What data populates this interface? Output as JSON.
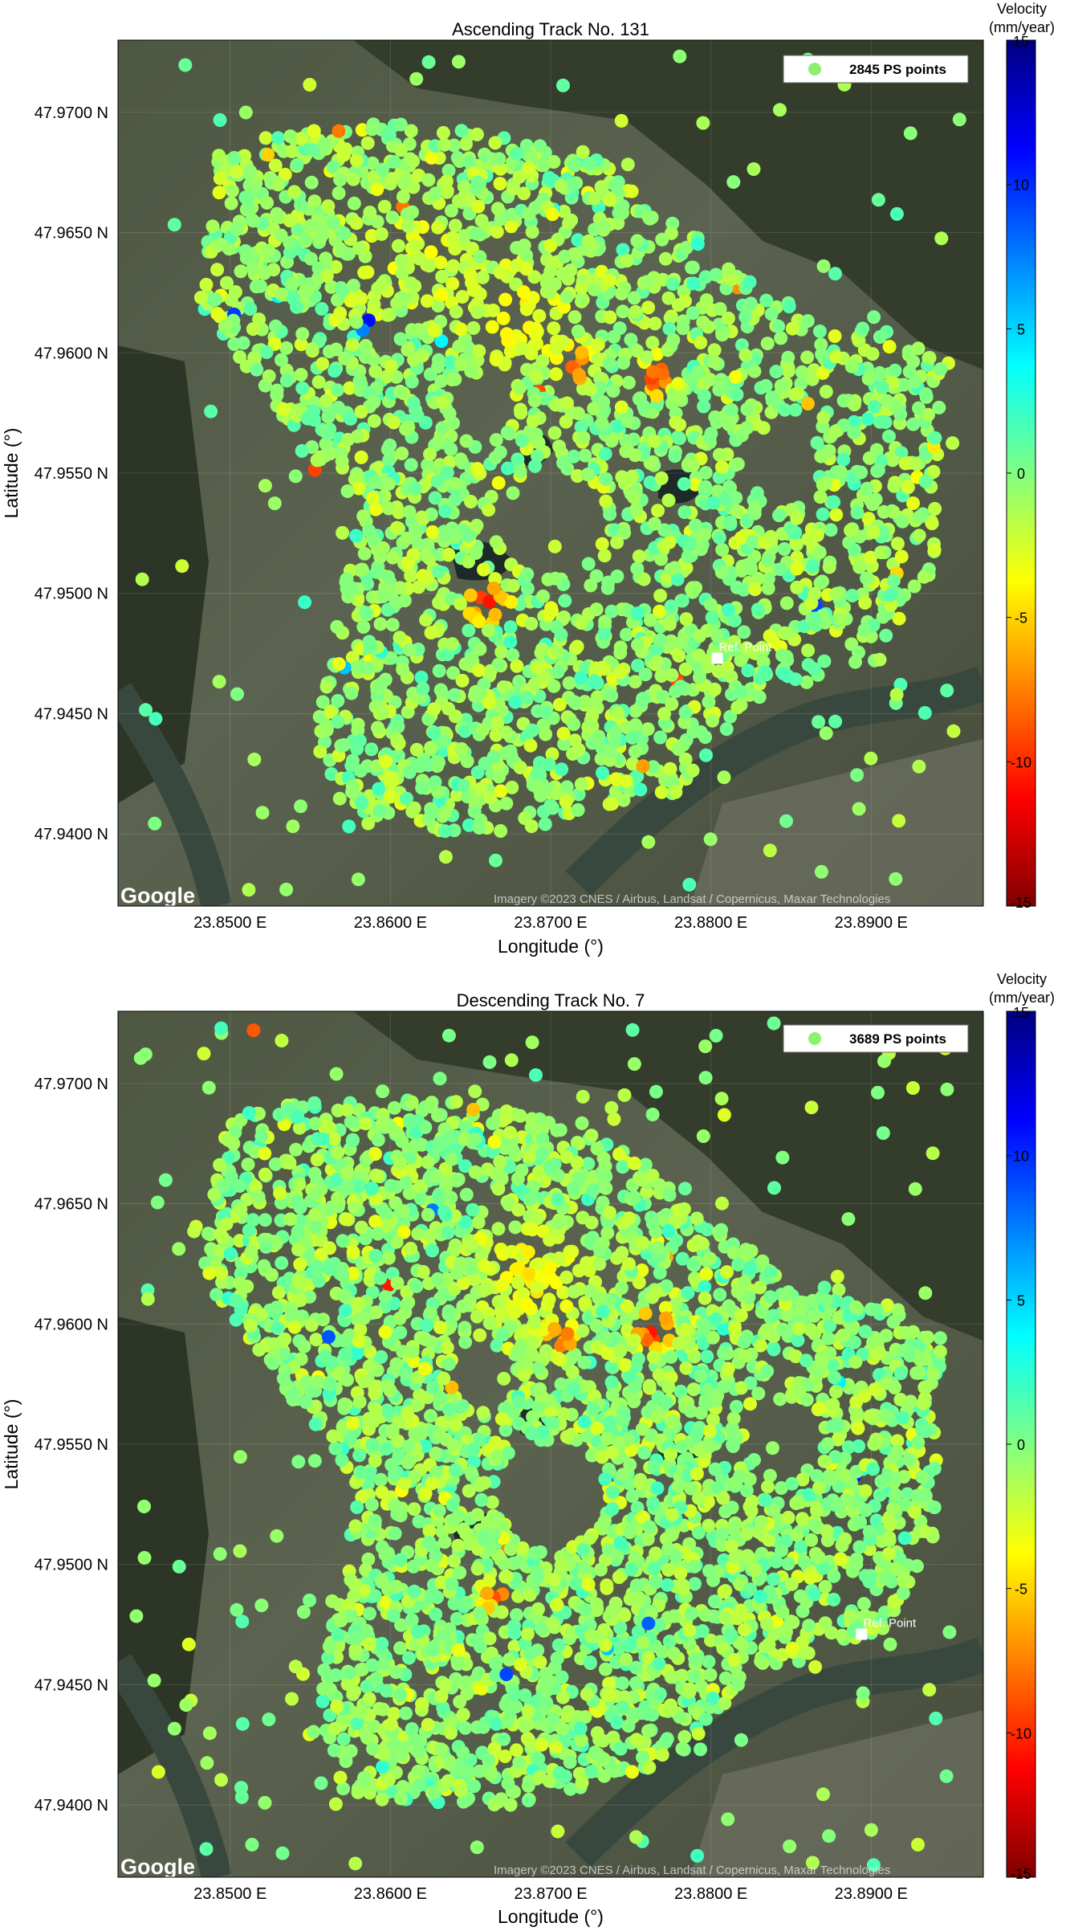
{
  "chart_data": [
    {
      "type": "scatter",
      "title": "Ascending Track No. 131",
      "xlabel": "Longitude (°)",
      "ylabel": "Latitude (°)",
      "xlim": [
        23.843,
        23.897
      ],
      "ylim": [
        47.937,
        47.973
      ],
      "x_ticks": [
        "23.8500 E",
        "23.8600 E",
        "23.8700 E",
        "23.8800 E",
        "23.8900 E"
      ],
      "y_ticks": [
        "47.9400 N",
        "47.9450 N",
        "47.9500 N",
        "47.9550 N",
        "47.9600 N",
        "47.9650 N",
        "47.9700 N"
      ],
      "legend": {
        "label": "2845 PS points",
        "position": "top-right",
        "marker_color": "#8cf06e"
      },
      "colorbar": {
        "title_line1": "Velocity",
        "title_line2": "(mm/year)",
        "range": [
          -15,
          15
        ],
        "ticks": [
          "15",
          "10",
          "5",
          "0",
          "-5",
          "-10",
          "-15"
        ]
      },
      "reference_point": {
        "label": "Ref. Point",
        "lon": 23.8804,
        "lat": 47.9473
      },
      "basemap_logo": "Google",
      "attribution": "Imagery ©2023 CNES / Airbus, Landsat / Copernicus, Maxar Technologies",
      "grid": true,
      "seed": 131,
      "series": [
        {
          "name": "2845 PS points",
          "lon_range": [
            23.844,
            23.896
          ],
          "lat_range": [
            47.9375,
            47.9725
          ],
          "count": 2845
        }
      ],
      "hotspots": [
        {
          "lon": 23.8715,
          "lat": 47.9595,
          "velocity": -10,
          "radius_deg": 0.0018
        },
        {
          "lon": 23.8765,
          "lat": 47.959,
          "velocity": -11,
          "radius_deg": 0.0016
        },
        {
          "lon": 23.866,
          "lat": 47.9496,
          "velocity": -12,
          "radius_deg": 0.0018
        },
        {
          "lon": 23.868,
          "lat": 47.9615,
          "velocity": -4,
          "radius_deg": 0.005
        },
        {
          "lon": 23.862,
          "lat": 47.964,
          "velocity": -3,
          "radius_deg": 0.006
        }
      ]
    },
    {
      "type": "scatter",
      "title": "Descending Track No. 7",
      "xlabel": "Longitude (°)",
      "ylabel": "Latitude (°)",
      "xlim": [
        23.843,
        23.897
      ],
      "ylim": [
        47.937,
        47.973
      ],
      "x_ticks": [
        "23.8500 E",
        "23.8600 E",
        "23.8700 E",
        "23.8800 E",
        "23.8900 E"
      ],
      "y_ticks": [
        "47.9400 N",
        "47.9450 N",
        "47.9500 N",
        "47.9550 N",
        "47.9600 N",
        "47.9650 N",
        "47.9700 N"
      ],
      "legend": {
        "label": "3689 PS points",
        "position": "top-right",
        "marker_color": "#8cf06e"
      },
      "colorbar": {
        "title_line1": "Velocity",
        "title_line2": "(mm/year)",
        "range": [
          -15,
          15
        ],
        "ticks": [
          "15",
          "10",
          "5",
          "0",
          "-5",
          "-10",
          "-15"
        ]
      },
      "reference_point": {
        "label": "Ref. Point",
        "lon": 23.8894,
        "lat": 47.9471
      },
      "basemap_logo": "Google",
      "attribution": "Imagery ©2023 CNES / Airbus, Landsat / Copernicus, Maxar Technologies",
      "grid": true,
      "seed": 7,
      "series": [
        {
          "name": "3689 PS points",
          "lon_range": [
            23.844,
            23.896
          ],
          "lat_range": [
            47.9375,
            47.9725
          ],
          "count": 3689
        }
      ],
      "hotspots": [
        {
          "lon": 23.8765,
          "lat": 47.9597,
          "velocity": -13,
          "radius_deg": 0.0017
        },
        {
          "lon": 23.8705,
          "lat": 47.9595,
          "velocity": -11,
          "radius_deg": 0.0015
        },
        {
          "lon": 23.8665,
          "lat": 47.9487,
          "velocity": -11,
          "radius_deg": 0.0011
        },
        {
          "lon": 23.864,
          "lat": 47.9575,
          "velocity": -9,
          "radius_deg": 0.0008
        },
        {
          "lon": 23.869,
          "lat": 47.962,
          "velocity": -4,
          "radius_deg": 0.005
        }
      ]
    }
  ]
}
